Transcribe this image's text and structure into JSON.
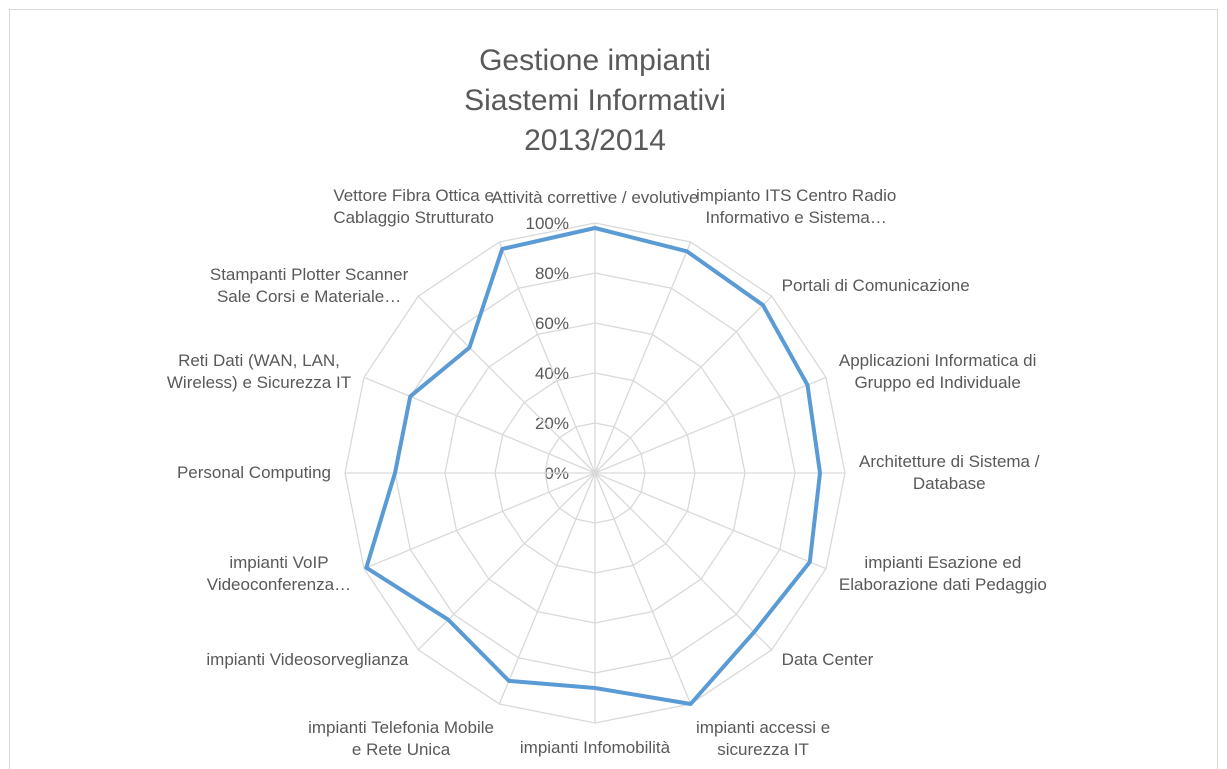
{
  "chart_data": {
    "type": "radar",
    "title": [
      "Gestione impianti",
      "Siastemi Informativi",
      "2013/2014"
    ],
    "categories": [
      "Attività correttive / evolutive",
      "impianto ITS Centro Radio\nInformativo e Sistema…",
      "Portali di Comunicazione",
      "Applicazioni Informatica di\nGruppo ed Individuale",
      "Architetture di Sistema /\nDatabase",
      "impianti Esazione ed\nElaborazione dati Pedaggio",
      "Data Center",
      "impianti accessi e\nsicurezza IT",
      "impianti Infomobilità",
      "impianti Telefonia Mobile\ne Rete Unica",
      "impianti Videosorveglianza",
      "impianti VoIP\nVideoconferenza…",
      "Personal Computing",
      "Reti Dati (WAN, LAN,\nWireless) e Sicurezza IT",
      "Stampanti Plotter Scanner\nSale Corsi e Materiale…",
      "Vettore Fibra Ottica e\nCablaggio Strutturato"
    ],
    "series": [
      {
        "name": "2013/2014",
        "color": "#5b9bd5",
        "values": [
          98,
          96,
          95,
          92,
          90,
          93,
          90,
          100,
          86,
          90,
          83,
          99,
          80,
          80,
          71,
          97
        ]
      }
    ],
    "ylim": [
      0,
      100
    ],
    "yticks": [
      {
        "value": 0,
        "label": "0%"
      },
      {
        "value": 20,
        "label": "20%"
      },
      {
        "value": 40,
        "label": "40%"
      },
      {
        "value": 60,
        "label": "60%"
      },
      {
        "value": 80,
        "label": "80%"
      },
      {
        "value": 100,
        "label": "100%"
      }
    ],
    "grid": true
  }
}
